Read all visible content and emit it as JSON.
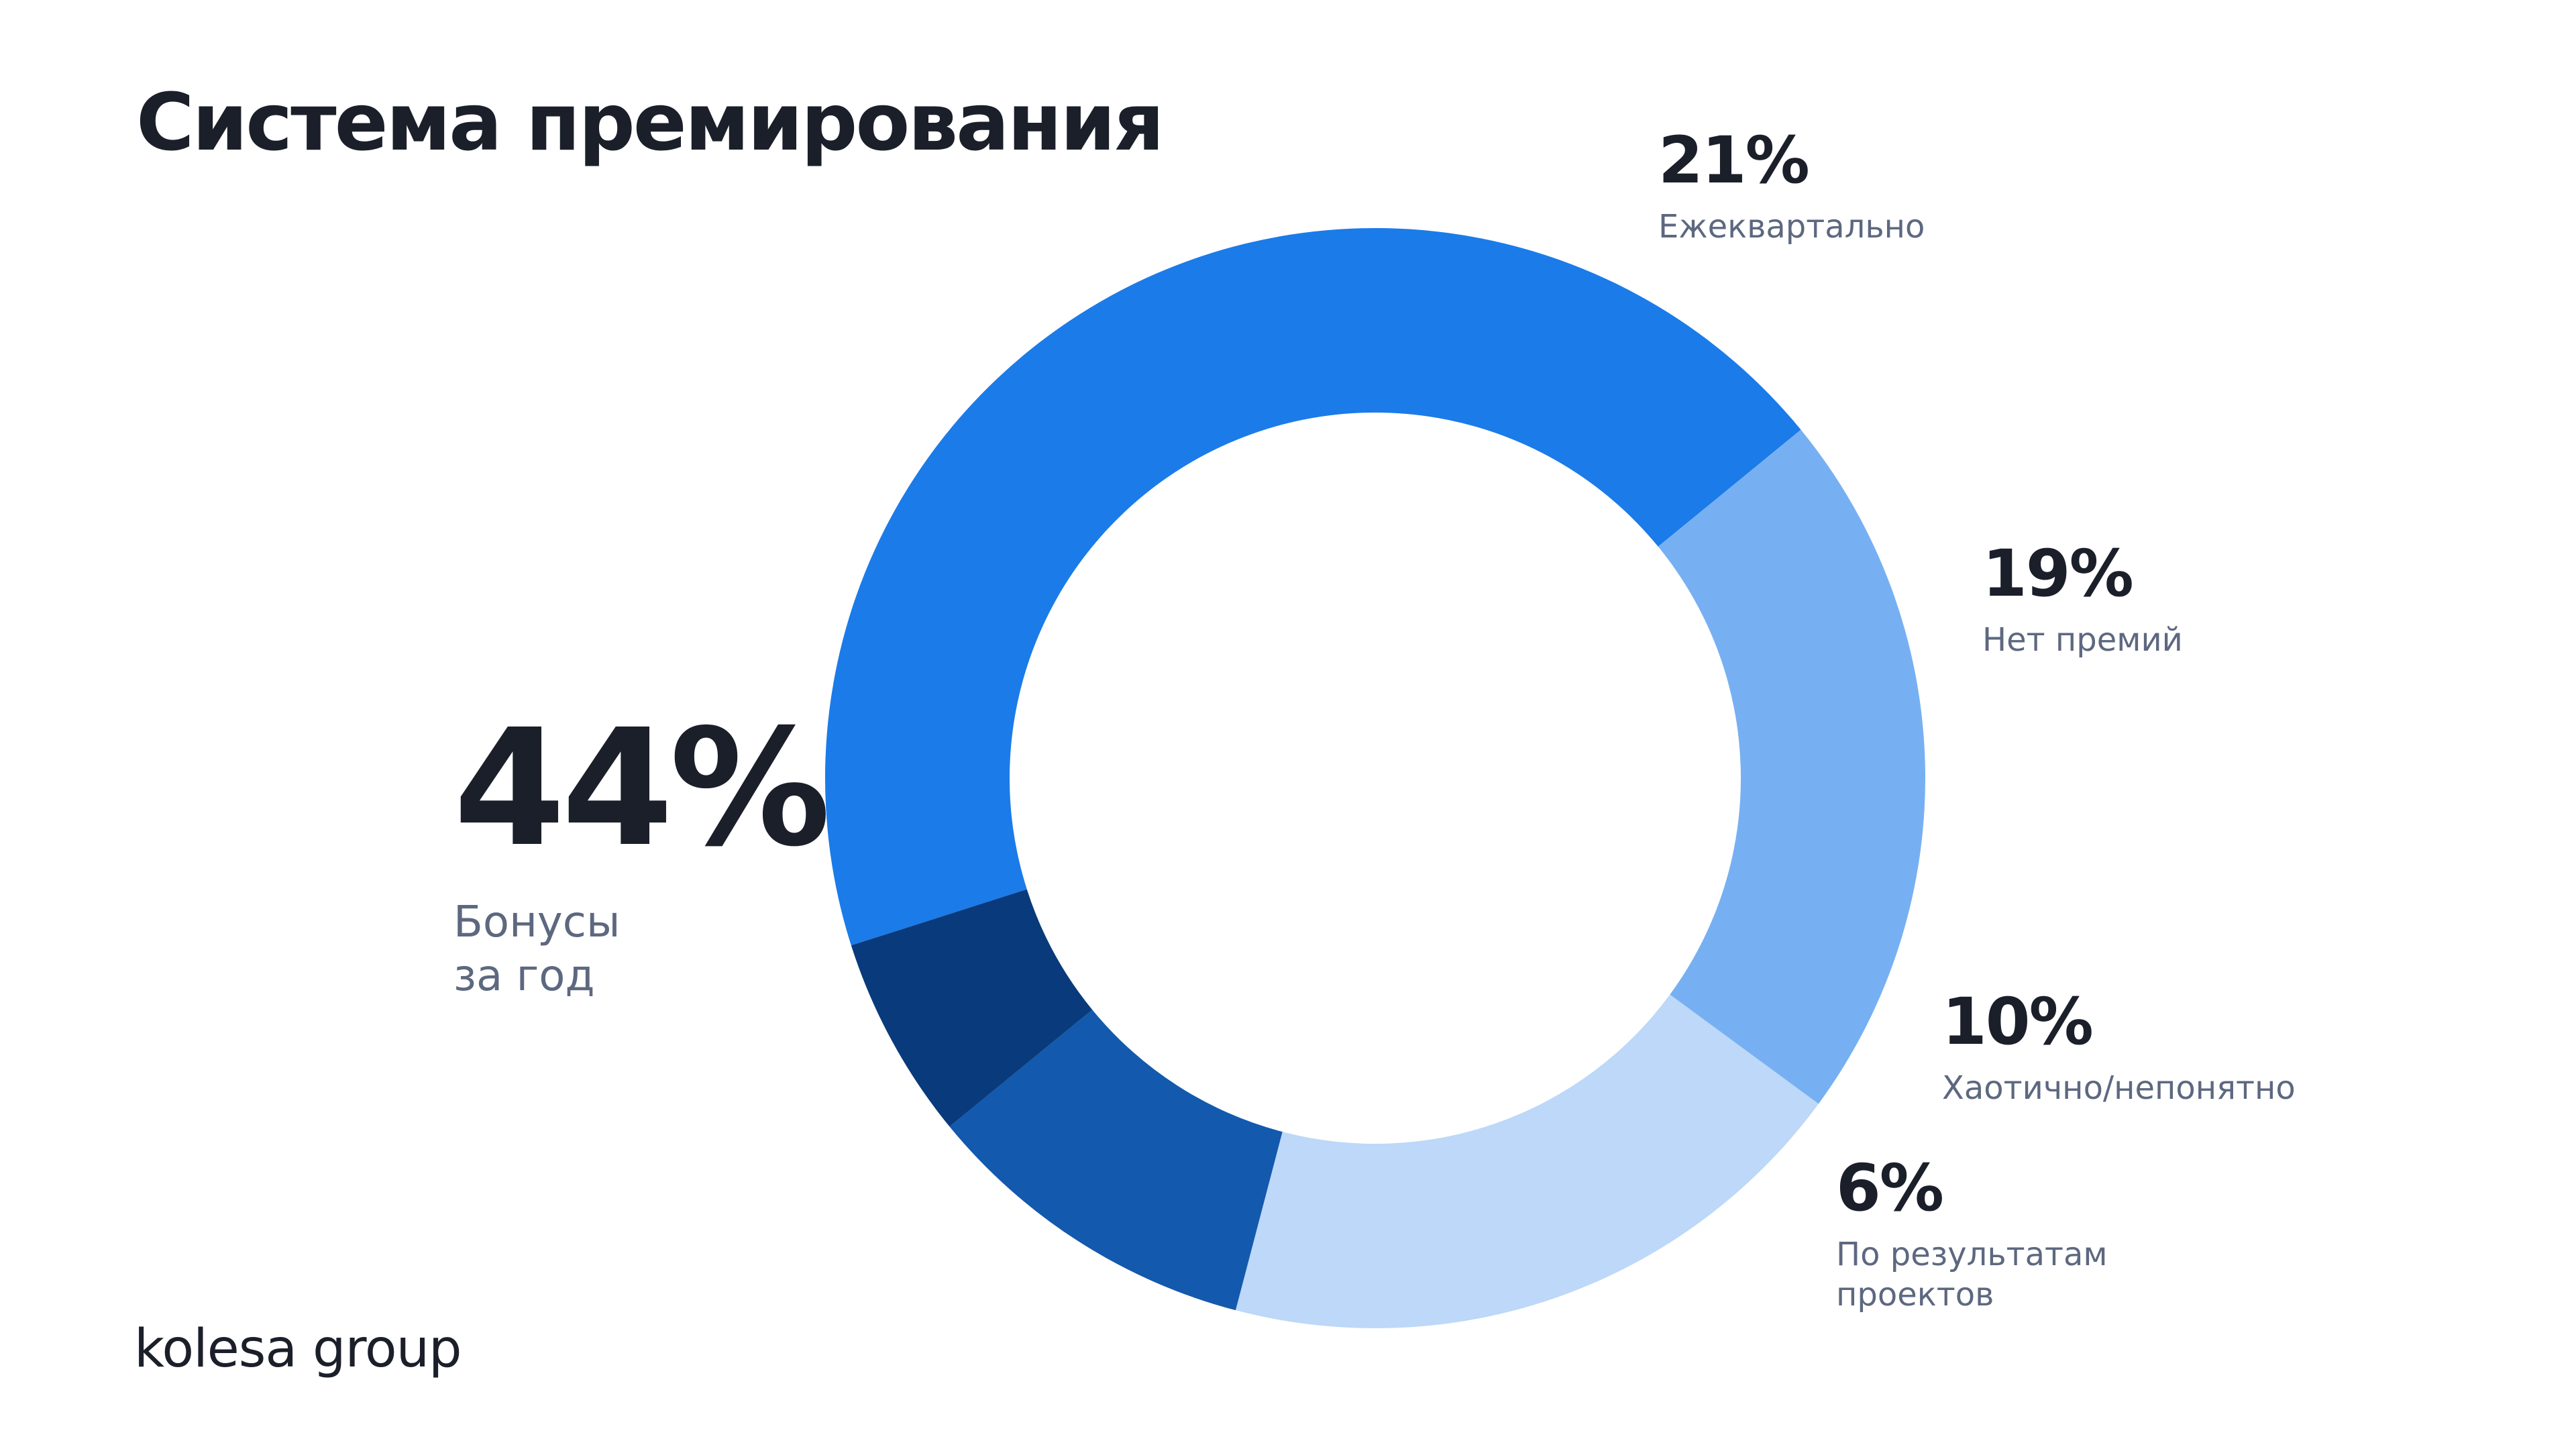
{
  "slide": {
    "title": "Система премирования",
    "logo_text": "kolesa group"
  },
  "chart_data": {
    "type": "pie",
    "variant": "donut",
    "title": "Система премирования",
    "slices": [
      {
        "label": "Бонусы\nза год",
        "value": 44,
        "value_label": "44%",
        "color": "#1b7be9"
      },
      {
        "label": "Ежеквартально",
        "value": 21,
        "value_label": "21%",
        "color": "#77b0f2"
      },
      {
        "label": "Нет премий",
        "value": 19,
        "value_label": "19%",
        "color": "#bdd8f8"
      },
      {
        "label": "Хаотично/непонятно",
        "value": 10,
        "value_label": "10%",
        "color": "#1359ad"
      },
      {
        "label": "По результатам\nпроектов",
        "value": 6,
        "value_label": "6%",
        "color": "#093a7b"
      }
    ]
  }
}
